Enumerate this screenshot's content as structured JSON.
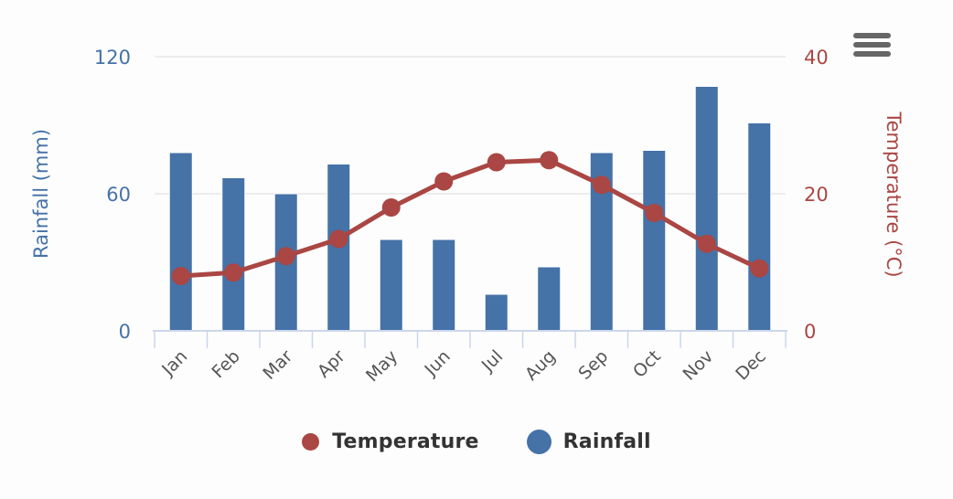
{
  "chart_data": {
    "type": "combo",
    "categories": [
      "Jan",
      "Feb",
      "Mar",
      "Apr",
      "May",
      "Jun",
      "Jul",
      "Aug",
      "Sep",
      "Oct",
      "Nov",
      "Dec"
    ],
    "series": [
      {
        "name": "Temperature",
        "type": "line",
        "y_axis": "right",
        "color": "#AA4643",
        "values": [
          8,
          8.5,
          10.9,
          13.4,
          18,
          21.8,
          24.6,
          24.9,
          21.3,
          17.2,
          12.7,
          9.1
        ]
      },
      {
        "name": "Rainfall",
        "type": "column",
        "y_axis": "left",
        "color": "#4572A7",
        "values": [
          78,
          67,
          60,
          73,
          40,
          40,
          16,
          28,
          78,
          79,
          107,
          91
        ]
      }
    ],
    "y_axis_left": {
      "title": "Rainfall (mm)",
      "min": 0,
      "max": 120,
      "ticks": [
        0,
        60,
        120
      ],
      "text_color": "#4572A7"
    },
    "y_axis_right": {
      "title": "Temperature (°C)",
      "min": 0,
      "max": 40,
      "ticks": [
        0,
        20,
        40
      ],
      "text_color": "#AA4643"
    },
    "x_axis": {
      "label_color": "#555555",
      "line_color": "#CCD6EB"
    },
    "grid": {
      "show": true,
      "color": "#E6E6E6"
    },
    "legend": {
      "position": "bottom",
      "items": [
        {
          "label": "Temperature",
          "color": "#AA4643"
        },
        {
          "label": "Rainfall",
          "color": "#4572A7"
        }
      ]
    },
    "styles": {
      "background": "#FDFDFD",
      "legend_text_color": "#333333",
      "menu_icon_color": "#666666"
    }
  }
}
